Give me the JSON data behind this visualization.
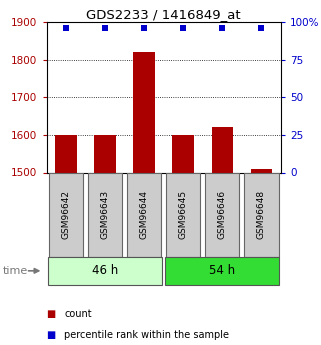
{
  "title": "GDS2233 / 1416849_at",
  "samples": [
    "GSM96642",
    "GSM96643",
    "GSM96644",
    "GSM96645",
    "GSM96646",
    "GSM96648"
  ],
  "bar_values": [
    1601,
    1601,
    1820,
    1600,
    1622,
    1510
  ],
  "percentile_values": [
    96,
    96,
    96,
    96,
    96,
    96
  ],
  "ylim_left": [
    1500,
    1900
  ],
  "ylim_right": [
    0,
    100
  ],
  "yticks_left": [
    1500,
    1600,
    1700,
    1800,
    1900
  ],
  "yticks_right": [
    0,
    25,
    50,
    75,
    100
  ],
  "bar_color": "#aa0000",
  "dot_color": "#0000cc",
  "group_labels": [
    "46 h",
    "54 h"
  ],
  "group_ranges": [
    [
      0,
      2
    ],
    [
      3,
      5
    ]
  ],
  "group_color_light": "#ccffcc",
  "group_color_dark": "#33dd33",
  "time_label": "time",
  "legend_count_color": "#aa0000",
  "legend_pct_color": "#0000cc",
  "bg_color": "#ffffff",
  "label_box_color": "#cccccc",
  "spine_color": "#000000"
}
